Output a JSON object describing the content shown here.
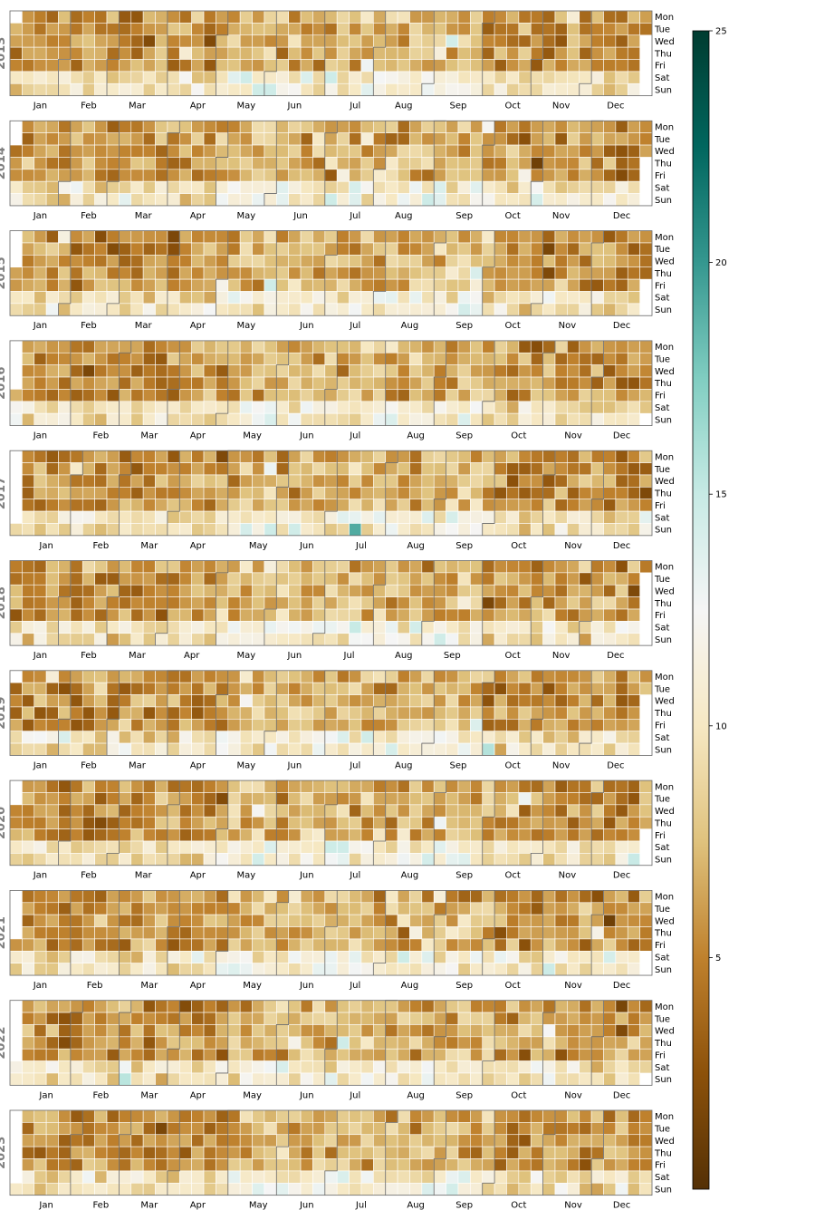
{
  "chart_data": {
    "type": "heatmap",
    "title": "",
    "years": [
      2013,
      2014,
      2015,
      2016,
      2017,
      2018,
      2019,
      2020,
      2021,
      2022,
      2023
    ],
    "weekday_labels": [
      "Mon",
      "Tue",
      "Wed",
      "Thu",
      "Fri",
      "Sat",
      "Sun"
    ],
    "month_labels": [
      "Jan",
      "Feb",
      "Mar",
      "Apr",
      "May",
      "Jun",
      "Jul",
      "Aug",
      "Sep",
      "Oct",
      "Nov",
      "Dec"
    ],
    "colorbar": {
      "min": 0,
      "max": 25,
      "ticks": [
        5,
        10,
        15,
        20,
        25
      ],
      "colormap": "BrBG",
      "colors": [
        "#543005",
        "#8c510a",
        "#bf812d",
        "#dfc27d",
        "#f6e8c3",
        "#f5f5f5",
        "#c7eae5",
        "#80cdc1",
        "#35978f",
        "#01665e",
        "#003c30"
      ]
    },
    "value_distribution": {
      "weekday_mean": 5.5,
      "weekend_mean": 9.5,
      "summer_boost": 1.5
    },
    "grid": false,
    "legend": "colorbar-right"
  }
}
